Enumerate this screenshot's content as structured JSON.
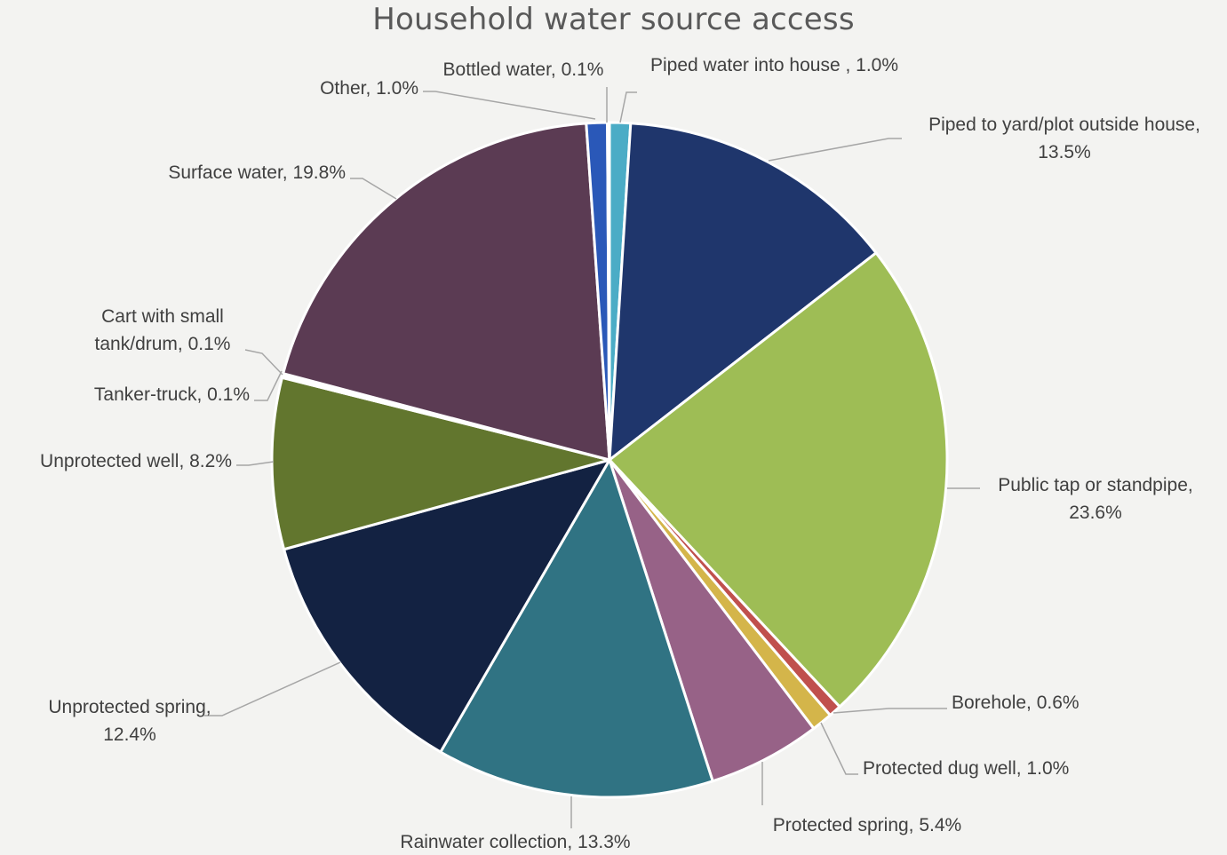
{
  "chart_data": {
    "type": "pie",
    "title": "Household water source access",
    "slices": [
      {
        "name": "Piped water into house ",
        "value": 1.0,
        "color": "#4bacc6",
        "label_lines": [
          "Piped water into house , 1.0%"
        ]
      },
      {
        "name": "Piped to yard/plot outside house",
        "value": 13.5,
        "color": "#1f366c",
        "label_lines": [
          "Piped to yard/plot outside house,",
          "13.5%"
        ]
      },
      {
        "name": "Public tap or standpipe",
        "value": 23.6,
        "color": "#9ebd55",
        "label_lines": [
          "Public tap or standpipe,",
          "23.6%"
        ]
      },
      {
        "name": "Borehole",
        "value": 0.6,
        "color": "#c0504d",
        "label_lines": [
          "Borehole, 0.6%"
        ]
      },
      {
        "name": "Protected dug well",
        "value": 1.0,
        "color": "#d4b54a",
        "label_lines": [
          "Protected dug well, 1.0%"
        ]
      },
      {
        "name": "Protected spring",
        "value": 5.4,
        "color": "#976287",
        "label_lines": [
          "Protected spring, 5.4%"
        ]
      },
      {
        "name": "Rainwater collection",
        "value": 13.3,
        "color": "#307383",
        "label_lines": [
          "Rainwater collection, 13.3%"
        ]
      },
      {
        "name": "Unprotected spring",
        "value": 12.4,
        "color": "#132242",
        "label_lines": [
          "Unprotected spring,",
          "12.4%"
        ]
      },
      {
        "name": "Unprotected well",
        "value": 8.2,
        "color": "#62762e",
        "label_lines": [
          "Unprotected well, 8.2%"
        ]
      },
      {
        "name": "Tanker-truck",
        "value": 0.1,
        "color": "#8064a2",
        "label_lines": [
          "Tanker-truck, 0.1%"
        ]
      },
      {
        "name": "Cart with small tank/drum",
        "value": 0.1,
        "color": "#f79646",
        "label_lines": [
          "Cart with small",
          "tank/drum, 0.1%"
        ]
      },
      {
        "name": "Surface water",
        "value": 19.8,
        "color": "#5b3b53",
        "label_lines": [
          "Surface water, 19.8%"
        ]
      },
      {
        "name": "Other",
        "value": 1.0,
        "color": "#2a58b8",
        "label_lines": [
          "Other, 1.0%"
        ]
      },
      {
        "name": "Bottled water",
        "value": 0.1,
        "color": "#6a8fd0",
        "label_lines": [
          "Bottled water, 0.1%"
        ]
      }
    ]
  }
}
